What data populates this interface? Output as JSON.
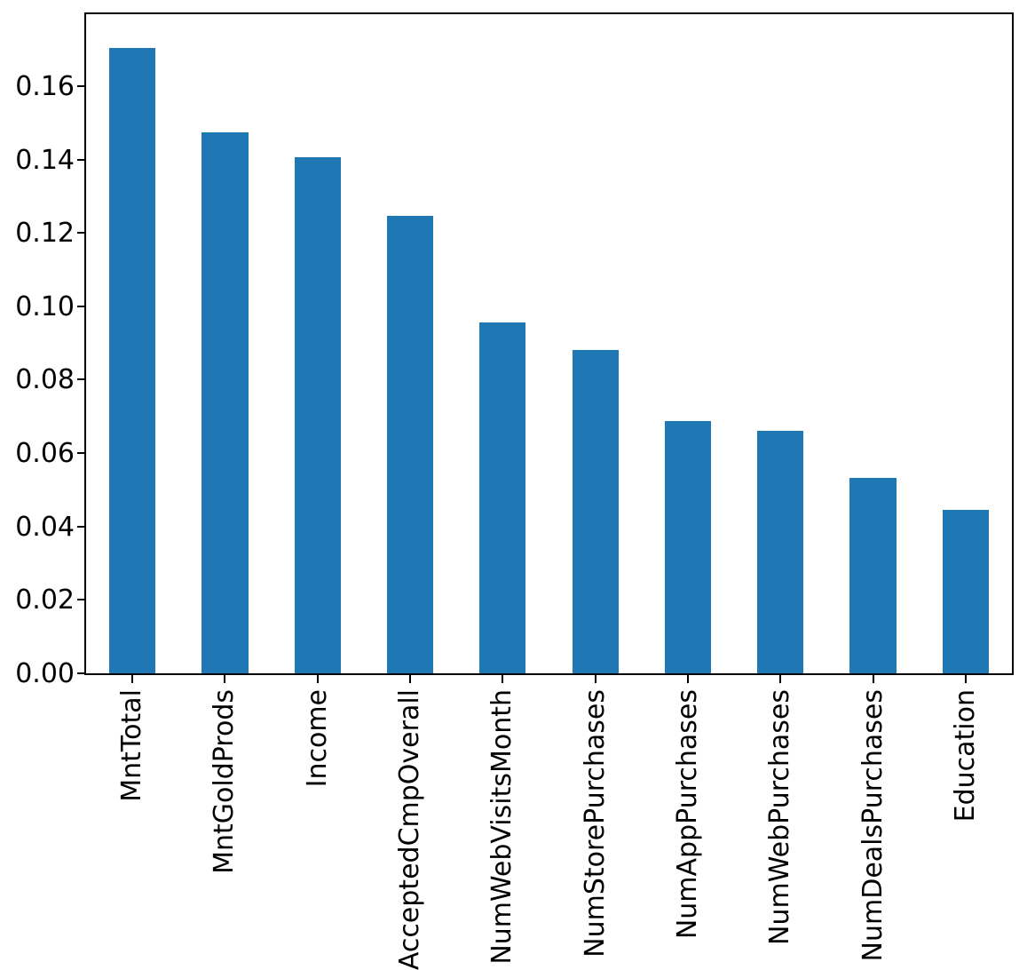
{
  "figure": {
    "background_color": "#ffffff",
    "spine_color": "#000000",
    "tick_color": "#000000",
    "label_color": "#000000"
  },
  "chart_data": {
    "type": "bar",
    "title": "",
    "xlabel": "",
    "ylabel": "",
    "categories": [
      "MntTotal",
      "MntGoldProds",
      "Income",
      "AcceptedCmpOverall",
      "NumWebVisitsMonth",
      "NumStorePurchases",
      "NumAppPurchases",
      "NumWebPurchases",
      "NumDealsPurchases",
      "Education"
    ],
    "values": [
      0.1705,
      0.1473,
      0.1406,
      0.1247,
      0.0956,
      0.088,
      0.0688,
      0.0662,
      0.0533,
      0.0446
    ],
    "bar_color": "#1f77b4",
    "bar_rel_width": 0.5,
    "ylim": [
      0,
      0.1796
    ],
    "yticks": [
      0.0,
      0.02,
      0.04,
      0.06,
      0.08,
      0.1,
      0.12,
      0.14,
      0.16
    ],
    "ytick_labels": [
      "0.00",
      "0.02",
      "0.04",
      "0.06",
      "0.08",
      "0.10",
      "0.12",
      "0.14",
      "0.16"
    ],
    "x_tick_rotation": 90,
    "grid": false,
    "legend": null
  }
}
